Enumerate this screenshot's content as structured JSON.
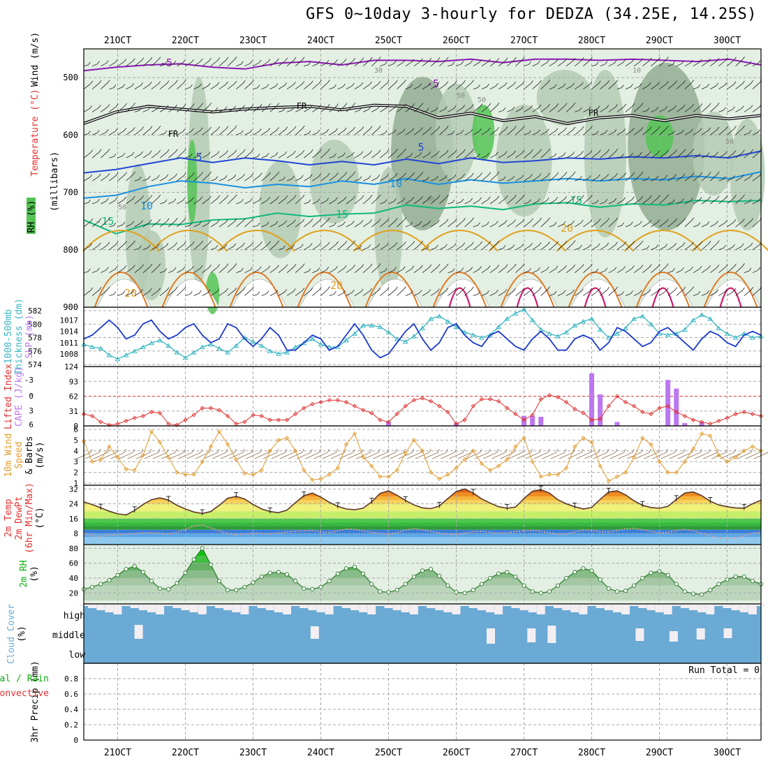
{
  "title": "GFS 0~10day 3-hourly for DEDZA (34.25E, 14.25S)",
  "date_labels": [
    "21OCT",
    "22OCT",
    "23OCT",
    "24OCT",
    "25OCT",
    "26OCT",
    "27OCT",
    "28OCT",
    "29OCT",
    "30OCT"
  ],
  "colors": {
    "rh_light": "#e3efe3",
    "rh_mid": "#b4cbb4",
    "rh_dark": "#92ad92",
    "rh_green": "#55c455",
    "temp_m5": "#8a18b4",
    "temp_freeze": "#111111",
    "temp_5": "#2246d4",
    "temp_10": "#1890e0",
    "temp_15": "#12b87c",
    "temp_20": "#e0a01c",
    "temp_25": "#e07820",
    "temp_30": "#d0186c",
    "thickness": "#38b6c2",
    "slp": "#1c3acc",
    "cape": "#bb77f0",
    "lifted": "#e03030",
    "wind": "#e09a2a",
    "barb": "#8a6a4a",
    "cloud": "#6aaad4",
    "cloud_clear": "#f2eef2"
  },
  "chart_data": [
    {
      "type": "heatmap",
      "panel": "upper-air",
      "ylabel_parts": [
        "RH (%)",
        "Temperature (°C)",
        "Wind (m/s)",
        "(millibars)"
      ],
      "y_ticks": [
        500,
        600,
        700,
        800,
        900
      ],
      "ylim": [
        900,
        450
      ],
      "contour_labels": [
        "-5",
        "-5",
        "FR",
        "FR",
        "FR",
        "5",
        "5",
        "5",
        "10",
        "10",
        "15",
        "-15",
        "15",
        "20",
        "20",
        "20",
        "30",
        "10",
        "50",
        "50",
        "50",
        "50",
        "50"
      ],
      "isotherms": [
        {
          "name": "-5",
          "pressure": [
            488,
            482,
            478,
            476,
            482,
            485,
            475,
            472,
            478,
            470,
            470,
            472,
            468,
            474,
            468,
            468,
            470,
            468,
            470,
            472,
            468,
            478
          ]
        },
        {
          "name": "FR",
          "pressure": [
            580,
            560,
            550,
            555,
            560,
            555,
            552,
            550,
            556,
            548,
            550,
            570,
            562,
            575,
            568,
            580,
            570,
            566,
            575,
            566,
            572,
            566
          ]
        },
        {
          "name": "5",
          "pressure": [
            666,
            660,
            650,
            640,
            648,
            640,
            645,
            652,
            646,
            652,
            642,
            650,
            640,
            648,
            645,
            640,
            642,
            638,
            640,
            636,
            640,
            628
          ]
        },
        {
          "name": "10",
          "pressure": [
            710,
            705,
            690,
            680,
            684,
            692,
            686,
            690,
            680,
            686,
            676,
            686,
            678,
            684,
            680,
            676,
            680,
            676,
            678,
            672,
            676,
            664
          ]
        },
        {
          "name": "15",
          "pressure": [
            748,
            772,
            755,
            756,
            748,
            746,
            736,
            742,
            738,
            736,
            722,
            728,
            724,
            730,
            720,
            718,
            726,
            720,
            722,
            714,
            716,
            714
          ]
        }
      ]
    },
    {
      "type": "line",
      "panel": "thickness-slp",
      "ylabel": [
        "1000-500mb",
        "Thickness (dm)",
        "SLP (mb)"
      ],
      "left_ticks": [
        582,
        580,
        578,
        576,
        574
      ],
      "right_ticks": [
        1017,
        1014,
        1011,
        1008
      ],
      "series": [
        {
          "name": "SLP",
          "values": [
            1012,
            1013,
            1015,
            1017,
            1015,
            1012,
            1013,
            1016,
            1017,
            1014,
            1012,
            1013,
            1015,
            1016,
            1013,
            1011,
            1012,
            1016,
            1015,
            1012,
            1010,
            1012,
            1015,
            1013,
            1009,
            1009,
            1011,
            1013,
            1012,
            1009,
            1010,
            1013,
            1016,
            1013,
            1009,
            1007,
            1008,
            1011,
            1014,
            1016,
            1012,
            1009,
            1011,
            1015,
            1016,
            1013,
            1011,
            1010,
            1013,
            1014,
            1012,
            1010,
            1009,
            1012,
            1014,
            1012,
            1009,
            1009,
            1012,
            1013,
            1012,
            1009,
            1011,
            1015,
            1014,
            1012,
            1010,
            1011,
            1014,
            1015,
            1013,
            1011,
            1009,
            1012,
            1014,
            1013,
            1011,
            1010,
            1013,
            1014,
            1013
          ]
        },
        {
          "name": "Thickness",
          "values": [
            577.0,
            576.6,
            576.4,
            575.4,
            574.8,
            575.4,
            576.0,
            576.6,
            577.2,
            577.6,
            576.8,
            575.8,
            575.0,
            575.8,
            576.6,
            577.0,
            576.4,
            575.8,
            576.8,
            578.0,
            577.4,
            576.8,
            576.0,
            575.6,
            575.8,
            576.6,
            577.2,
            577.8,
            577.0,
            576.6,
            576.6,
            577.6,
            578.6,
            579.8,
            579.8,
            579.6,
            578.8,
            577.8,
            577.4,
            578.2,
            579.4,
            580.8,
            581.2,
            580.4,
            579.6,
            578.8,
            578.4,
            578.0,
            578.4,
            579.6,
            580.8,
            581.6,
            582.2,
            580.6,
            579.2,
            578.6,
            578.2,
            578.8,
            579.8,
            580.4,
            580.8,
            579.2,
            578.0,
            578.6,
            579.4,
            580.8,
            581.2,
            580.0,
            578.6,
            578.4,
            578.6,
            579.2,
            580.6,
            581.4,
            580.8,
            579.4,
            578.6,
            578.0,
            578.6,
            578.0,
            578.2
          ]
        }
      ]
    },
    {
      "type": "bar",
      "panel": "cape-li",
      "ylabel": [
        "Lifted Index",
        "CAPE (J/kg)"
      ],
      "li_ticks": [
        "-3",
        "-",
        "0",
        "3",
        "6"
      ],
      "cape_ticks": [
        124,
        93,
        62,
        31,
        0
      ],
      "cape_bars": [
        {
          "x": 25.0,
          "value": 8
        },
        {
          "x": 26.0,
          "value": 6
        },
        {
          "x": 27.0,
          "value": 21
        },
        {
          "x": 27.125,
          "value": 21
        },
        {
          "x": 27.25,
          "value": 19
        },
        {
          "x": 28.0,
          "value": 110
        },
        {
          "x": 28.125,
          "value": 66
        },
        {
          "x": 28.375,
          "value": 8
        },
        {
          "x": 29.125,
          "value": 96
        },
        {
          "x": 29.25,
          "value": 78
        },
        {
          "x": 29.375,
          "value": 6
        },
        {
          "x": 29.625,
          "value": 8
        }
      ],
      "li_values": [
        3.6,
        4.0,
        5.2,
        5.8,
        5.6,
        5.0,
        4.4,
        4.0,
        3.2,
        3.4,
        5.6,
        5.8,
        4.8,
        3.8,
        2.4,
        2.4,
        2.8,
        4.0,
        5.6,
        5.2,
        3.8,
        4.0,
        4.8,
        4.8,
        4.8,
        3.6,
        2.4,
        1.6,
        1.2,
        0.8,
        0.8,
        1.2,
        2.0,
        2.8,
        3.4,
        4.8,
        5.2,
        3.6,
        2.0,
        0.8,
        0.4,
        1.0,
        2.0,
        3.2,
        5.6,
        4.8,
        2.0,
        0.6,
        0.6,
        1.0,
        2.4,
        3.6,
        4.8,
        3.8,
        0.6,
        -0.2,
        0.2,
        1.2,
        2.6,
        3.4,
        4.8,
        4.6,
        2.0,
        0.0,
        1.2,
        2.0,
        3.2,
        3.6,
        2.4,
        2.0,
        3.2,
        4.0,
        4.8,
        5.2,
        5.6,
        5.0,
        4.4,
        3.6,
        3.2,
        3.6,
        4.0
      ]
    },
    {
      "type": "line",
      "panel": "wind10m",
      "ylabel": [
        "10m Wind",
        "Speed",
        "& Barbs",
        "(m/s)"
      ],
      "y_ticks": [
        1,
        2,
        3,
        4,
        5,
        6
      ],
      "values": [
        4.9,
        3.0,
        3.2,
        4.4,
        3.4,
        2.3,
        2.2,
        3.6,
        5.8,
        4.8,
        3.4,
        2.0,
        1.8,
        1.8,
        3.0,
        4.4,
        5.8,
        4.6,
        3.2,
        1.9,
        1.8,
        2.2,
        4.0,
        5.0,
        5.2,
        4.0,
        2.2,
        1.3,
        1.4,
        1.8,
        2.4,
        4.6,
        5.6,
        3.4,
        2.6,
        1.6,
        1.6,
        2.2,
        3.8,
        5.0,
        4.0,
        2.0,
        1.4,
        1.8,
        2.4,
        3.2,
        4.0,
        2.8,
        2.2,
        2.6,
        3.2,
        4.4,
        5.2,
        3.0,
        1.6,
        1.8,
        1.8,
        2.4,
        4.4,
        5.2,
        4.8,
        2.6,
        1.2,
        1.6,
        2.0,
        3.4,
        5.2,
        4.6,
        3.0,
        2.0,
        2.0,
        3.0,
        4.2,
        5.6,
        5.4,
        3.6,
        3.0,
        3.4,
        4.0,
        4.4,
        4.0
      ]
    },
    {
      "type": "area",
      "panel": "temp-dewpt",
      "ylabel": [
        "2m Temp",
        "2m DewPt",
        "(6hr Min/Max)",
        "(°C)"
      ],
      "y_ticks": [
        8,
        16,
        24,
        32
      ],
      "temp": [
        25.0,
        23.6,
        21.8,
        20.0,
        18.6,
        18.0,
        20.4,
        23.6,
        26.2,
        27.2,
        26.0,
        23.2,
        21.2,
        19.6,
        18.8,
        19.8,
        23.2,
        27.0,
        28.0,
        26.6,
        23.6,
        21.2,
        19.8,
        19.2,
        20.6,
        24.6,
        28.4,
        29.8,
        27.6,
        24.8,
        22.6,
        21.2,
        20.8,
        21.6,
        25.0,
        29.6,
        31.0,
        28.6,
        25.8,
        23.4,
        21.8,
        21.4,
        22.8,
        26.8,
        30.6,
        32.0,
        29.8,
        26.6,
        24.4,
        22.4,
        21.6,
        22.2,
        26.8,
        30.8,
        31.6,
        29.8,
        26.2,
        24.0,
        22.4,
        21.2,
        22.0,
        26.4,
        30.4,
        31.0,
        28.8,
        25.6,
        23.2,
        22.0,
        21.6,
        22.6,
        26.4,
        29.8,
        30.4,
        28.4,
        25.4,
        23.4,
        22.4,
        21.8,
        21.6,
        24.0,
        26.0
      ],
      "dewpt": [
        8.0,
        6.8,
        6.4,
        7.0,
        7.2,
        7.6,
        8.0,
        8.4,
        8.4,
        8.2,
        7.6,
        8.6,
        10.2,
        12.0,
        12.6,
        11.0,
        9.4,
        8.0,
        7.2,
        7.6,
        8.2,
        8.0,
        7.8,
        8.2,
        8.8,
        9.2,
        9.4,
        9.6,
        8.8,
        8.6,
        9.4,
        10.4,
        10.2,
        9.4,
        8.6,
        8.0,
        7.6,
        8.4,
        9.8,
        10.6,
        10.0,
        9.2,
        8.2,
        7.6,
        7.6,
        8.2,
        9.0,
        9.2,
        8.6,
        8.2,
        8.4,
        9.0,
        9.4,
        9.6,
        9.2,
        8.4,
        7.6,
        7.8,
        8.8,
        9.8,
        9.6,
        9.0,
        8.8,
        9.6,
        10.4,
        10.8,
        10.0,
        9.2,
        8.4,
        8.6,
        9.6,
        10.2,
        9.4,
        8.2,
        6.8,
        5.6,
        5.2,
        5.6,
        6.8,
        8.2,
        8.6
      ]
    },
    {
      "type": "area",
      "panel": "rh2m",
      "ylabel": [
        "2m RH",
        "(%)"
      ],
      "y_ticks": [
        20,
        40,
        60,
        80
      ],
      "values": [
        25,
        28,
        32,
        37,
        44,
        52,
        56,
        48,
        36,
        26,
        25,
        33,
        47,
        65,
        80,
        58,
        36,
        24,
        24,
        28,
        34,
        42,
        47,
        48,
        45,
        36,
        26,
        25,
        28,
        36,
        46,
        53,
        55,
        46,
        32,
        22,
        21,
        24,
        32,
        42,
        50,
        52,
        43,
        30,
        21,
        20,
        24,
        32,
        40,
        46,
        48,
        42,
        30,
        22,
        20,
        22,
        30,
        40,
        48,
        53,
        50,
        38,
        26,
        22,
        23,
        30,
        40,
        47,
        49,
        44,
        32,
        22,
        19,
        18,
        24,
        32,
        38,
        42,
        42,
        36,
        32
      ]
    },
    {
      "type": "heatmap",
      "panel": "cloud-cover",
      "ylabel": [
        "Cloud Cover",
        "(%)"
      ],
      "levels": [
        "high",
        "middle",
        "low"
      ]
    },
    {
      "type": "bar",
      "panel": "precip",
      "ylabel": [
        "3hr Precip (mm)"
      ],
      "legend_parts": [
        "Total / Rain",
        "Convective"
      ],
      "y_ticks": [
        0,
        0.2,
        0.4,
        0.6,
        0.8
      ],
      "run_total_label": "Run Total = 0",
      "values": []
    }
  ]
}
